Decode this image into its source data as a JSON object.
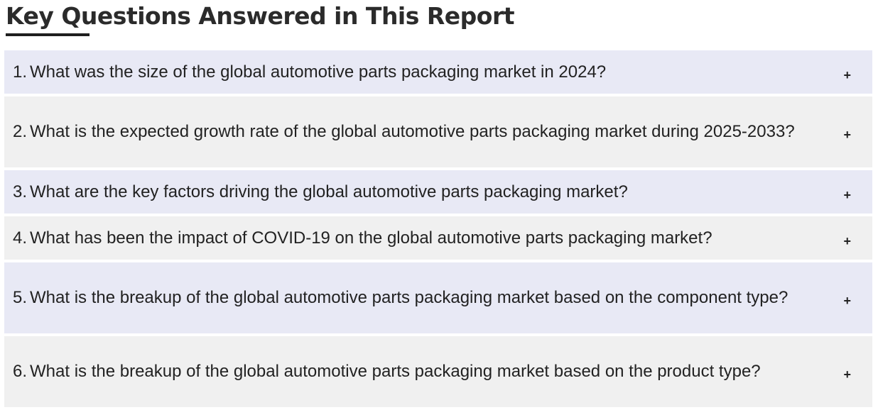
{
  "section": {
    "title": "Key Questions Answered in This Report"
  },
  "faq": {
    "items": [
      {
        "number": "1.",
        "question": "What was the size of the global automotive parts packaging market in 2024?",
        "toggle": "+"
      },
      {
        "number": "2.",
        "question": "What is the expected growth rate of the global automotive parts packaging market during 2025-2033?",
        "toggle": "+"
      },
      {
        "number": "3.",
        "question": "What are the key factors driving the global automotive parts packaging market?",
        "toggle": "+"
      },
      {
        "number": "4.",
        "question": "What has been the impact of COVID-19 on the global automotive parts packaging market?",
        "toggle": "+"
      },
      {
        "number": "5.",
        "question": "What is the breakup of the global automotive parts packaging market based on the component type?",
        "toggle": "+"
      },
      {
        "number": "6.",
        "question": "What is the breakup of the global automotive parts packaging market based on the product type?",
        "toggle": "+"
      }
    ]
  }
}
